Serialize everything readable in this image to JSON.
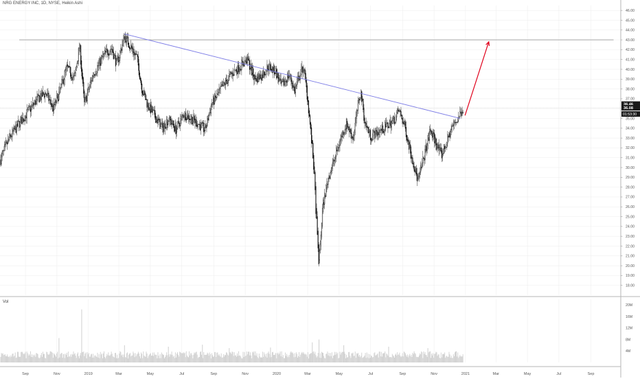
{
  "header": {
    "title": "NRG ENERGY INC, 1D, NYSE, Heikin Ashi"
  },
  "volume_pane": {
    "label": "Vol",
    "axis_ticks": [
      {
        "label": "20M",
        "value": 20
      },
      {
        "label": "16M",
        "value": 16
      },
      {
        "label": "12M",
        "value": 12
      },
      {
        "label": "8M",
        "value": 8
      },
      {
        "label": "4M",
        "value": 4
      }
    ]
  },
  "price_badges": {
    "last": "36.46",
    "reference": "36.08",
    "countdown": "01:53:30"
  },
  "colors": {
    "candle": "#111111",
    "trendline": "#7b7be6",
    "resistance": "#9a9a9a",
    "arrow": "#e0001b",
    "grid": "#ececec",
    "axis_text": "#555555",
    "volume": "#cfcfcf"
  },
  "chart_data": {
    "type": "candlestick",
    "ylim": [
      17,
      46.5
    ],
    "y_ticks": [
      18,
      19,
      20,
      21,
      22,
      23,
      24,
      25,
      26,
      27,
      28,
      29,
      30,
      31,
      32,
      33,
      34,
      35,
      36,
      37,
      38,
      39,
      40,
      41,
      42,
      43,
      44,
      45,
      46
    ],
    "y_tick_labels": [
      "18.00",
      "19.00",
      "20.00",
      "21.00",
      "22.00",
      "23.00",
      "24.00",
      "25.00",
      "26.00",
      "27.00",
      "28.00",
      "29.00",
      "30.00",
      "31.00",
      "32.00",
      "33.00",
      "34.00",
      "35.00",
      "36.00",
      "37.00",
      "38.00",
      "39.00",
      "40.00",
      "41.00",
      "42.00",
      "43.00",
      "44.00",
      "45.00",
      "46.00"
    ],
    "x_ticks": [
      {
        "label": "Sep",
        "date": "2018-09-01"
      },
      {
        "label": "Nov",
        "date": "2018-11-01"
      },
      {
        "label": "2019",
        "date": "2019-01-01"
      },
      {
        "label": "Mar",
        "date": "2019-03-01"
      },
      {
        "label": "May",
        "date": "2019-05-01"
      },
      {
        "label": "Jul",
        "date": "2019-07-01"
      },
      {
        "label": "Sep",
        "date": "2019-09-01"
      },
      {
        "label": "Nov",
        "date": "2019-11-01"
      },
      {
        "label": "2020",
        "date": "2020-01-01"
      },
      {
        "label": "Mar",
        "date": "2020-03-01"
      },
      {
        "label": "May",
        "date": "2020-05-01"
      },
      {
        "label": "Jul",
        "date": "2020-07-01"
      },
      {
        "label": "Sep",
        "date": "2020-09-01"
      },
      {
        "label": "Nov",
        "date": "2020-11-01"
      },
      {
        "label": "2021",
        "date": "2021-01-01"
      },
      {
        "label": "Mar",
        "date": "2021-03-01"
      },
      {
        "label": "May",
        "date": "2021-05-01"
      },
      {
        "label": "Jul",
        "date": "2021-07-01"
      },
      {
        "label": "Sep",
        "date": "2021-09-01"
      }
    ],
    "close_path": [
      [
        "2018-07-15",
        30.8
      ],
      [
        "2018-08-01",
        33.0
      ],
      [
        "2018-08-20",
        34.5
      ],
      [
        "2018-09-05",
        35.6
      ],
      [
        "2018-09-25",
        37.0
      ],
      [
        "2018-10-10",
        37.6
      ],
      [
        "2018-10-25",
        36.0
      ],
      [
        "2018-11-05",
        37.5
      ],
      [
        "2018-11-20",
        40.2
      ],
      [
        "2018-12-05",
        39.0
      ],
      [
        "2018-12-15",
        42.5
      ],
      [
        "2018-12-24",
        36.4
      ],
      [
        "2019-01-10",
        39.5
      ],
      [
        "2019-02-01",
        41.5
      ],
      [
        "2019-02-15",
        42.2
      ],
      [
        "2019-02-25",
        40.5
      ],
      [
        "2019-03-12",
        43.4
      ],
      [
        "2019-03-25",
        42.2
      ],
      [
        "2019-04-05",
        41.2
      ],
      [
        "2019-04-15",
        38.0
      ],
      [
        "2019-04-25",
        36.5
      ],
      [
        "2019-05-10",
        35.2
      ],
      [
        "2019-05-25",
        34.0
      ],
      [
        "2019-06-05",
        35.0
      ],
      [
        "2019-06-20",
        33.9
      ],
      [
        "2019-07-05",
        35.5
      ],
      [
        "2019-07-20",
        35.0
      ],
      [
        "2019-08-01",
        34.5
      ],
      [
        "2019-08-15",
        33.8
      ],
      [
        "2019-08-28",
        36.5
      ],
      [
        "2019-09-10",
        37.5
      ],
      [
        "2019-09-25",
        38.8
      ],
      [
        "2019-10-05",
        39.5
      ],
      [
        "2019-10-25",
        40.5
      ],
      [
        "2019-11-05",
        41.0
      ],
      [
        "2019-11-20",
        39.0
      ],
      [
        "2019-12-05",
        39.5
      ],
      [
        "2019-12-15",
        40.3
      ],
      [
        "2019-12-30",
        39.8
      ],
      [
        "2020-01-10",
        38.2
      ],
      [
        "2020-01-25",
        39.5
      ],
      [
        "2020-02-05",
        37.8
      ],
      [
        "2020-02-15",
        39.5
      ],
      [
        "2020-02-22",
        40.2
      ],
      [
        "2020-03-01",
        37.0
      ],
      [
        "2020-03-08",
        33.0
      ],
      [
        "2020-03-13",
        30.0
      ],
      [
        "2020-03-20",
        22.5
      ],
      [
        "2020-03-23",
        20.2
      ],
      [
        "2020-03-30",
        26.0
      ],
      [
        "2020-04-10",
        29.0
      ],
      [
        "2020-04-20",
        30.5
      ],
      [
        "2020-05-01",
        32.5
      ],
      [
        "2020-05-15",
        34.5
      ],
      [
        "2020-05-28",
        33.0
      ],
      [
        "2020-06-05",
        35.8
      ],
      [
        "2020-06-12",
        37.8
      ],
      [
        "2020-06-20",
        34.5
      ],
      [
        "2020-07-01",
        33.2
      ],
      [
        "2020-07-15",
        33.6
      ],
      [
        "2020-08-01",
        34.2
      ],
      [
        "2020-08-15",
        34.8
      ],
      [
        "2020-08-25",
        35.8
      ],
      [
        "2020-09-05",
        34.2
      ],
      [
        "2020-09-15",
        32.0
      ],
      [
        "2020-09-25",
        29.8
      ],
      [
        "2020-10-01",
        28.6
      ],
      [
        "2020-10-12",
        31.0
      ],
      [
        "2020-10-25",
        33.8
      ],
      [
        "2020-11-05",
        32.5
      ],
      [
        "2020-11-15",
        31.2
      ],
      [
        "2020-11-25",
        32.5
      ],
      [
        "2020-12-05",
        34.0
      ],
      [
        "2020-12-15",
        34.8
      ],
      [
        "2020-12-22",
        35.5
      ],
      [
        "2020-12-28",
        36.1
      ]
    ],
    "volume_spikes": [
      [
        "2018-11-05",
        8.5
      ],
      [
        "2018-12-19",
        18.5
      ],
      [
        "2019-03-12",
        6.0
      ],
      [
        "2019-06-05",
        5.5
      ],
      [
        "2019-08-10",
        6.2
      ],
      [
        "2019-10-01",
        5.0
      ],
      [
        "2019-12-20",
        5.2
      ],
      [
        "2020-03-10",
        7.0
      ],
      [
        "2020-03-23",
        8.0
      ],
      [
        "2020-05-10",
        6.0
      ],
      [
        "2020-08-05",
        5.5
      ],
      [
        "2020-10-20",
        5.0
      ]
    ],
    "volume_baseline": 2.8,
    "annotations": {
      "resistance_line": {
        "y": 43.0,
        "from": "2018-08-20",
        "to": "2021-10-15"
      },
      "trendline": {
        "from": [
          "2019-03-12",
          43.6
        ],
        "to": [
          "2020-12-22",
          35.0
        ]
      },
      "projection_arrow": {
        "from": [
          "2020-12-31",
          35.3
        ],
        "to": [
          "2021-02-15",
          42.8
        ]
      }
    },
    "last_price": 36.46,
    "reference_price": 36.08
  }
}
